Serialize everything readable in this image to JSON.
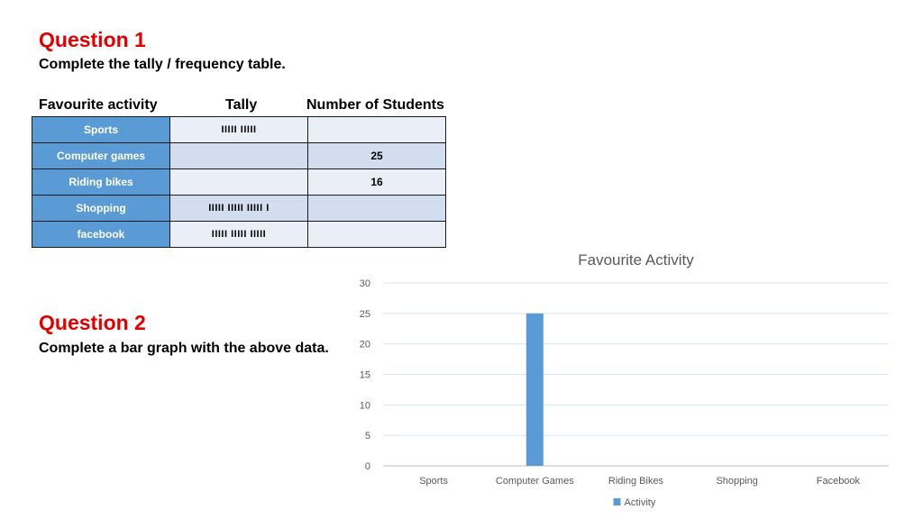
{
  "question1": {
    "title": "Question 1",
    "instruction": "Complete the tally / frequency table."
  },
  "table": {
    "headers": [
      "Favourite activity",
      "Tally",
      "Number of Students"
    ],
    "rows": [
      {
        "activity": "Sports",
        "tally": "IIIII IIIII",
        "number": ""
      },
      {
        "activity": "Computer games",
        "tally": "",
        "number": "25"
      },
      {
        "activity": "Riding bikes",
        "tally": "",
        "number": "16"
      },
      {
        "activity": "Shopping",
        "tally": "IIIII IIIII IIIII I",
        "number": ""
      },
      {
        "activity": "facebook",
        "tally": "IIIII IIIII IIIII",
        "number": ""
      }
    ]
  },
  "question2": {
    "title": "Question 2",
    "instruction": "Complete a bar graph with the above data."
  },
  "colors": {
    "question_title": "#e00000",
    "table_header_cell": "#5b9bd5",
    "bar": "#5b9bd5"
  },
  "chart_data": {
    "type": "bar",
    "title": "Favourite Activity",
    "xlabel": "",
    "ylabel": "",
    "categories": [
      "Sports",
      "Computer Games",
      "Riding Bikes",
      "Shopping",
      "Facebook"
    ],
    "series": [
      {
        "name": "Activity",
        "values": [
          0,
          25,
          0,
          0,
          0
        ]
      }
    ],
    "ylim": [
      0,
      30
    ],
    "yticks": [
      0,
      5,
      10,
      15,
      20,
      25,
      30
    ],
    "grid": true,
    "legend": "bottom"
  }
}
